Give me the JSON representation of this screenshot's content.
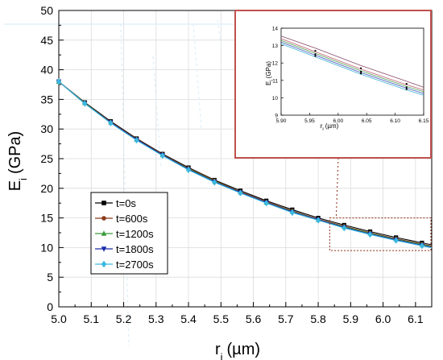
{
  "chart_data": {
    "type": "line",
    "xlabel": "r",
    "xlabel_sub": "i",
    "xlabel_unit": "(µm)",
    "ylabel": "E",
    "ylabel_sub": "i",
    "ylabel_unit": "(GPa)",
    "xlim": [
      5.0,
      6.15
    ],
    "ylim": [
      0,
      50
    ],
    "xticks": [
      "5.0",
      "5.1",
      "5.2",
      "5.3",
      "5.4",
      "5.5",
      "5.6",
      "5.7",
      "5.8",
      "5.9",
      "6.0",
      "6.1"
    ],
    "yticks": [
      "0",
      "5",
      "10",
      "15",
      "20",
      "25",
      "30",
      "35",
      "40",
      "45",
      "50"
    ],
    "grid": true,
    "legend_position": "lower-left",
    "x": [
      5.0,
      5.08,
      5.16,
      5.24,
      5.32,
      5.4,
      5.48,
      5.56,
      5.64,
      5.72,
      5.8,
      5.88,
      5.96,
      6.04,
      6.12
    ],
    "series": [
      {
        "name": "t=0s",
        "color": "#000000",
        "marker": "square",
        "values": [
          38.0,
          34.5,
          31.3,
          28.4,
          25.8,
          23.5,
          21.4,
          19.6,
          17.9,
          16.4,
          15.0,
          13.8,
          12.7,
          11.7,
          10.8
        ]
      },
      {
        "name": "t=600s",
        "color": "#8b3a1a",
        "marker": "circle",
        "values": [
          38.0,
          34.4,
          31.2,
          28.3,
          25.7,
          23.4,
          21.3,
          19.4,
          17.7,
          16.2,
          14.8,
          13.6,
          12.5,
          11.5,
          10.6
        ]
      },
      {
        "name": "t=1200s",
        "color": "#3a9a3a",
        "marker": "triangle-up",
        "values": [
          38.0,
          34.4,
          31.1,
          28.2,
          25.6,
          23.3,
          21.2,
          19.3,
          17.6,
          16.1,
          14.7,
          13.5,
          12.4,
          11.4,
          10.5
        ]
      },
      {
        "name": "t=1800s",
        "color": "#1a2aaa",
        "marker": "triangle-down",
        "values": [
          38.0,
          34.3,
          31.1,
          28.2,
          25.6,
          23.2,
          21.1,
          19.3,
          17.6,
          16.0,
          14.7,
          13.4,
          12.3,
          11.3,
          10.4
        ]
      },
      {
        "name": "t=2700s",
        "color": "#3ab8e0",
        "marker": "diamond",
        "values": [
          38.0,
          34.3,
          31.0,
          28.1,
          25.5,
          23.1,
          21.0,
          19.2,
          17.5,
          15.9,
          14.6,
          13.3,
          12.2,
          11.2,
          10.3
        ]
      }
    ],
    "inset": {
      "xlabel": "r",
      "xlabel_sub": "i",
      "xlabel_unit": "(µm)",
      "ylabel": "E",
      "ylabel_sub": "i",
      "ylabel_unit": "(GPa)",
      "xlim": [
        5.9,
        6.15
      ],
      "ylim": [
        9,
        14
      ],
      "xticks": [
        "5.90",
        "5.95",
        "6.00",
        "6.05",
        "6.10",
        "6.15"
      ],
      "yticks": [
        "9",
        "10",
        "11",
        "12",
        "13",
        "14"
      ],
      "frame_color": "#c0504d",
      "x": [
        5.9,
        5.96,
        6.04,
        6.12,
        6.15
      ],
      "series": [
        {
          "name": "t=0s",
          "color": "#8a4a6a",
          "values": [
            13.55,
            12.85,
            11.85,
            10.95,
            10.6
          ]
        },
        {
          "name": "t=600s",
          "color": "#c06070",
          "values": [
            13.4,
            12.65,
            11.65,
            10.75,
            10.45
          ]
        },
        {
          "name": "t=1200s",
          "color": "#50a050",
          "values": [
            13.3,
            12.55,
            11.55,
            10.65,
            10.35
          ]
        },
        {
          "name": "t=1800s",
          "color": "#4050c0",
          "values": [
            13.2,
            12.45,
            11.45,
            10.55,
            10.25
          ]
        },
        {
          "name": "t=2700s",
          "color": "#40b0d0",
          "values": [
            13.1,
            12.35,
            11.35,
            10.45,
            10.15
          ]
        }
      ],
      "points_x": [
        5.96,
        6.04,
        6.12
      ],
      "points_values": [
        [
          12.7,
          12.5,
          12.4
        ],
        [
          11.7,
          11.5,
          11.4
        ],
        [
          10.8,
          10.6,
          10.5
        ]
      ]
    }
  }
}
